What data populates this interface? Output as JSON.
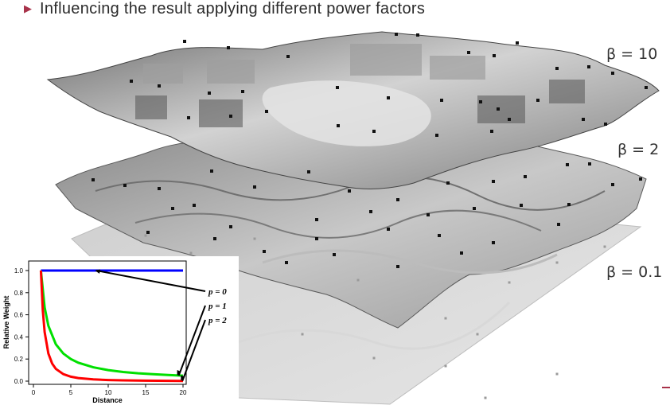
{
  "heading": {
    "bullet_icon": "triangle-right-icon",
    "text": "Influencing the result applying different power factors"
  },
  "surface_labels": {
    "top": "β = 10",
    "middle": "β = 2",
    "bottom": "β = 0.1"
  },
  "colors": {
    "accent": "#a8324a",
    "p0_line": "#0000ff",
    "p1_line": "#00e000",
    "p2_line": "#ff0000"
  },
  "chart_data": {
    "type": "line",
    "xlabel": "Distance",
    "ylabel": "Relative Weight",
    "xlim": [
      0,
      20
    ],
    "ylim": [
      0,
      1.0
    ],
    "x_ticks": [
      "0",
      "5",
      "10",
      "15",
      "20"
    ],
    "y_ticks": [
      "0.0",
      "0.2",
      "0.4",
      "0.6",
      "0.8",
      "1.0"
    ],
    "series": [
      {
        "name": "p = 0",
        "x": [
          1,
          2,
          4,
          6,
          8,
          10,
          12,
          14,
          16,
          18,
          20
        ],
        "y": [
          1,
          1,
          1,
          1,
          1,
          1,
          1,
          1,
          1,
          1,
          1
        ]
      },
      {
        "name": "p = 1",
        "x": [
          1,
          1.5,
          2,
          3,
          4,
          5,
          6,
          8,
          10,
          12,
          14,
          16,
          18,
          20
        ],
        "y": [
          1,
          0.667,
          0.5,
          0.333,
          0.25,
          0.2,
          0.167,
          0.125,
          0.1,
          0.083,
          0.071,
          0.063,
          0.056,
          0.05
        ]
      },
      {
        "name": "p = 2",
        "x": [
          1,
          1.25,
          1.5,
          2,
          2.5,
          3,
          4,
          5,
          6,
          8,
          10,
          12,
          15,
          20
        ],
        "y": [
          1,
          0.64,
          0.444,
          0.25,
          0.16,
          0.111,
          0.063,
          0.04,
          0.028,
          0.016,
          0.01,
          0.007,
          0.004,
          0.0025
        ]
      }
    ],
    "annotations": [
      "p = 0",
      "p = 1",
      "p = 2"
    ]
  }
}
